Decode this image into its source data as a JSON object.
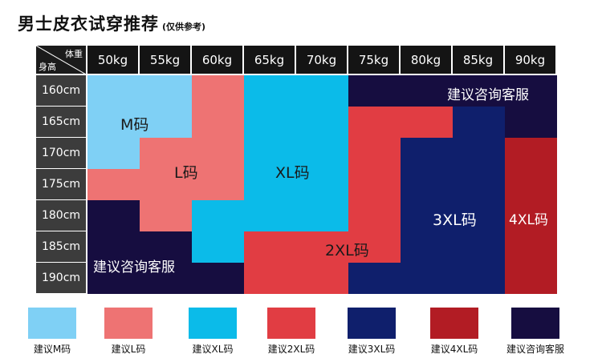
{
  "title": "男士皮衣试穿推荐",
  "subtitle": "(仅供参考)",
  "header": {
    "weight_label": "体重",
    "height_label": "身高",
    "weights": [
      "50kg",
      "55kg",
      "60kg",
      "65kg",
      "70kg",
      "75kg",
      "80kg",
      "85kg",
      "90kg"
    ],
    "heights": [
      "160cm",
      "165cm",
      "170cm",
      "175cm",
      "180cm",
      "185cm",
      "190cm"
    ]
  },
  "colors": {
    "M": "#7fd0f5",
    "L": "#ee7373",
    "XL": "#0bbbe9",
    "2XL": "#e13d43",
    "3XL": "#0f1f6c",
    "4XL": "#b21c24",
    "C": "#160d40"
  },
  "grid": [
    [
      "M",
      "M",
      "L",
      "XL",
      "XL",
      "C",
      "C",
      "C",
      "C"
    ],
    [
      "M",
      "M",
      "L",
      "XL",
      "XL",
      "2XL",
      "2XL",
      "3XL",
      "C"
    ],
    [
      "M",
      "L",
      "L",
      "XL",
      "XL",
      "2XL",
      "3XL",
      "3XL",
      "4XL"
    ],
    [
      "L",
      "L",
      "L",
      "XL",
      "XL",
      "2XL",
      "3XL",
      "3XL",
      "4XL"
    ],
    [
      "C",
      "L",
      "XL",
      "XL",
      "XL",
      "2XL",
      "3XL",
      "3XL",
      "4XL"
    ],
    [
      "C",
      "C",
      "XL",
      "2XL",
      "2XL",
      "2XL",
      "3XL",
      "3XL",
      "4XL"
    ],
    [
      "C",
      "C",
      "C",
      "2XL",
      "2XL",
      "3XL",
      "3XL",
      "3XL",
      "4XL"
    ]
  ],
  "region_labels": {
    "M": "M码",
    "L": "L码",
    "XL": "XL码",
    "2XL": "2XL码",
    "3XL": "3XL码",
    "4XL": "4XL码",
    "C_top": "建议咨询客服",
    "C_bottom": "建议咨询客服"
  },
  "legend": [
    {
      "key": "M",
      "label": "建议M码"
    },
    {
      "key": "L",
      "label": "建议L码"
    },
    {
      "key": "XL",
      "label": "建议XL码"
    },
    {
      "key": "2XL",
      "label": "建议2XL码"
    },
    {
      "key": "3XL",
      "label": "建议3XL码"
    },
    {
      "key": "4XL",
      "label": "建议4XL码"
    },
    {
      "key": "C",
      "label": "建议咨询客服"
    }
  ]
}
